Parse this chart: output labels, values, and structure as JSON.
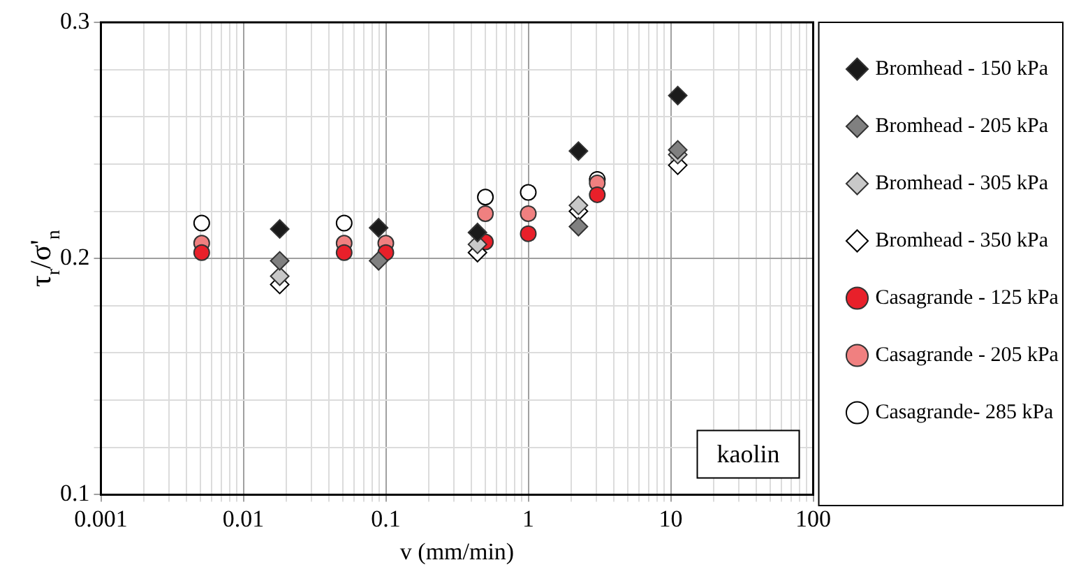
{
  "chart_data": {
    "type": "scatter",
    "xlabel": "v (mm/min)",
    "ylabel": "τ$_{r}$/σ'$_{n}$",
    "log": "x",
    "grid": true,
    "legend": "right",
    "annotations": [
      "kaolin"
    ],
    "xlim": [
      0.001,
      100
    ],
    "ylim": [
      0.1,
      0.3
    ],
    "xticks": [
      0.001,
      {
        "value": 0.002,
        "label": null
      },
      {
        "value": 0.003,
        "label": null
      },
      {
        "value": 0.004,
        "label": null
      },
      {
        "value": 0.005,
        "label": null
      },
      {
        "value": 0.006,
        "label": null
      },
      {
        "value": 0.007,
        "label": null
      },
      {
        "value": 0.008,
        "label": null
      },
      {
        "value": 0.009,
        "label": null
      },
      0.01,
      {
        "value": 0.02,
        "label": null
      },
      {
        "value": 0.03,
        "label": null
      },
      {
        "value": 0.04,
        "label": null
      },
      {
        "value": 0.05,
        "label": null
      },
      {
        "value": 0.06,
        "label": null
      },
      {
        "value": 0.07,
        "label": null
      },
      {
        "value": 0.08,
        "label": null
      },
      {
        "value": 0.09,
        "label": null
      },
      0.1,
      {
        "value": 0.2,
        "label": null
      },
      {
        "value": 0.3,
        "label": null
      },
      {
        "value": 0.4,
        "label": null
      },
      {
        "value": 0.5,
        "label": null
      },
      {
        "value": 0.6,
        "label": null
      },
      {
        "value": 0.7,
        "label": null
      },
      {
        "value": 0.8,
        "label": null
      },
      {
        "value": 0.9,
        "label": null
      },
      1,
      {
        "value": 2,
        "label": null
      },
      {
        "value": 3,
        "label": null
      },
      {
        "value": 4,
        "label": null
      },
      {
        "value": 5,
        "label": null
      },
      {
        "value": 6,
        "label": null
      },
      {
        "value": 7,
        "label": null
      },
      {
        "value": 8,
        "label": null
      },
      {
        "value": 9,
        "label": null
      },
      10,
      {
        "value": 20,
        "label": null
      },
      {
        "value": 30,
        "label": null
      },
      {
        "value": 40,
        "label": null
      },
      {
        "value": 50,
        "label": null
      },
      {
        "value": 60,
        "label": null
      },
      {
        "value": 70,
        "label": null
      },
      {
        "value": 80,
        "label": null
      },
      {
        "value": 90,
        "label": null
      },
      100
    ],
    "yticks": [
      0.1,
      {
        "value": 0.12,
        "label": null
      },
      {
        "value": 0.14,
        "label": null
      },
      {
        "value": 0.16,
        "label": null
      },
      {
        "value": 0.18,
        "label": null
      },
      0.2,
      {
        "value": 0.22,
        "label": null
      },
      {
        "value": 0.24,
        "label": null
      },
      {
        "value": 0.26,
        "label": null
      },
      {
        "value": 0.28,
        "label": null
      },
      0.3
    ],
    "series": [
      {
        "name": "Bromhead - 150 kPa",
        "color": "#1a1a1a",
        "marker": "diamond",
        "x": [
          0.018,
          0.089,
          0.44,
          2.25,
          11.2
        ],
        "values": [
          0.2125,
          0.213,
          0.211,
          0.2455,
          0.269
        ]
      },
      {
        "name": "Bromhead - 205 kPa",
        "color": "#808080",
        "marker": "diamond",
        "x": [
          0.018,
          0.089,
          2.25,
          11.2
        ],
        "values": [
          0.199,
          0.199,
          0.2135,
          0.246
        ]
      },
      {
        "name": "Bromhead - 305 kPa",
        "color": "#c8c8c8",
        "marker": "diamond",
        "x": [
          0.018,
          0.44,
          2.25,
          11.2
        ],
        "values": [
          0.1925,
          0.206,
          0.2225,
          0.244
        ]
      },
      {
        "name": "Bromhead - 350 kPa",
        "color": "#ffffff",
        "marker": "diamond",
        "x": [
          0.018,
          0.44,
          2.25,
          11.2
        ],
        "values": [
          0.189,
          0.2025,
          0.22,
          0.2395
        ]
      },
      {
        "name": "Casagrande - 125 kPa",
        "color": "#e8202a",
        "marker": "circle",
        "x": [
          0.0051,
          0.051,
          0.1,
          0.5,
          1,
          3.05
        ],
        "values": [
          0.2025,
          0.2025,
          0.2025,
          0.207,
          0.2105,
          0.227
        ]
      },
      {
        "name": "Casagrande - 205 kPa",
        "color": "#f08080",
        "marker": "circle",
        "x": [
          0.0051,
          0.051,
          0.1,
          0.5,
          1,
          3.05
        ],
        "values": [
          0.2065,
          0.2065,
          0.2065,
          0.219,
          0.219,
          0.232
        ]
      },
      {
        "name": "Casagrande- 285 kPa",
        "color": "#ffffff",
        "marker": "circle",
        "x": [
          0.0051,
          0.051,
          0.5,
          1,
          3.05
        ],
        "values": [
          0.215,
          0.215,
          0.226,
          0.228,
          0.2335
        ]
      }
    ]
  }
}
